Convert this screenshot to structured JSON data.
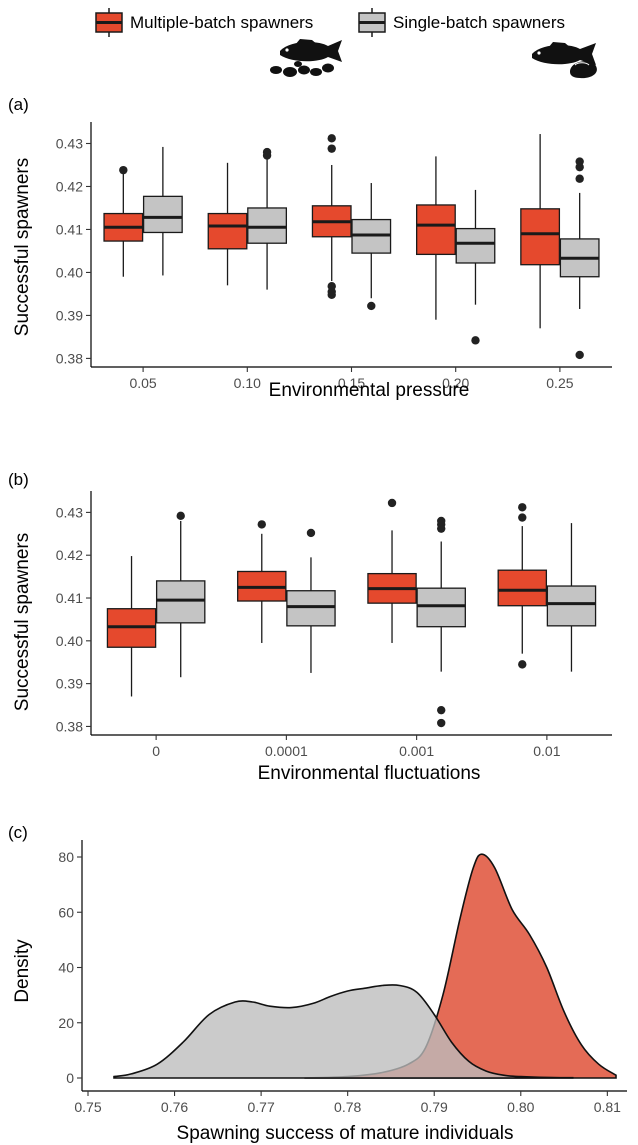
{
  "colors": {
    "multiple": "#e5492d",
    "single": "#c4c4c4",
    "density_multiple": "#e0563f",
    "density_single": "#bdbdbd",
    "stroke": "#1a1a1a"
  },
  "legend": {
    "multiple_label": "Multiple-batch spawners",
    "single_label": "Single-batch spawners"
  },
  "chart_data": [
    {
      "type": "box",
      "panel_label": "(a)",
      "xlabel": "Environmental pressure",
      "ylabel": "Successful spawners",
      "categories": [
        "0.05",
        "0.10",
        "0.15",
        "0.20",
        "0.25"
      ],
      "ylim": [
        0.378,
        0.435
      ],
      "yticks": [
        0.38,
        0.39,
        0.4,
        0.41,
        0.42,
        0.43
      ],
      "ytick_labels": [
        "0.38",
        "0.39",
        "0.40",
        "0.41",
        "0.42",
        "0.43"
      ],
      "grid": false,
      "series": [
        {
          "name": "Multiple-batch spawners",
          "boxes": [
            {
              "min": 0.399,
              "q1": 0.4073,
              "median": 0.4105,
              "q3": 0.4137,
              "max": 0.4235,
              "outliers": [
                0.4238
              ]
            },
            {
              "min": 0.397,
              "q1": 0.4055,
              "median": 0.4108,
              "q3": 0.4137,
              "max": 0.4255,
              "outliers": []
            },
            {
              "min": 0.398,
              "q1": 0.4083,
              "median": 0.4118,
              "q3": 0.4155,
              "max": 0.425,
              "outliers": [
                0.4312,
                0.4288,
                0.3968,
                0.3955,
                0.3948
              ]
            },
            {
              "min": 0.389,
              "q1": 0.4042,
              "median": 0.411,
              "q3": 0.4157,
              "max": 0.427,
              "outliers": []
            },
            {
              "min": 0.387,
              "q1": 0.4018,
              "median": 0.409,
              "q3": 0.4148,
              "max": 0.4322,
              "outliers": []
            }
          ]
        },
        {
          "name": "Single-batch spawners",
          "boxes": [
            {
              "min": 0.3993,
              "q1": 0.4093,
              "median": 0.4128,
              "q3": 0.4177,
              "max": 0.4292,
              "outliers": []
            },
            {
              "min": 0.396,
              "q1": 0.4068,
              "median": 0.4105,
              "q3": 0.415,
              "max": 0.4265,
              "outliers": [
                0.428,
                0.4272
              ]
            },
            {
              "min": 0.394,
              "q1": 0.4045,
              "median": 0.4087,
              "q3": 0.4123,
              "max": 0.4208,
              "outliers": [
                0.3922
              ]
            },
            {
              "min": 0.3925,
              "q1": 0.4022,
              "median": 0.4068,
              "q3": 0.4102,
              "max": 0.4192,
              "outliers": [
                0.3842
              ]
            },
            {
              "min": 0.3915,
              "q1": 0.399,
              "median": 0.4033,
              "q3": 0.4078,
              "max": 0.4185,
              "outliers": [
                0.4258,
                0.4245,
                0.4218,
                0.3808
              ]
            }
          ]
        }
      ]
    },
    {
      "type": "box",
      "panel_label": "(b)",
      "xlabel": "Environmental fluctuations",
      "ylabel": "Successful spawners",
      "categories": [
        "0",
        "0.0001",
        "0.001",
        "0.01"
      ],
      "ylim": [
        0.378,
        0.435
      ],
      "yticks": [
        0.38,
        0.39,
        0.4,
        0.41,
        0.42,
        0.43
      ],
      "ytick_labels": [
        "0.38",
        "0.39",
        "0.40",
        "0.41",
        "0.42",
        "0.43"
      ],
      "grid": false,
      "series": [
        {
          "name": "Multiple-batch spawners",
          "boxes": [
            {
              "min": 0.387,
              "q1": 0.3985,
              "median": 0.4033,
              "q3": 0.4075,
              "max": 0.4198,
              "outliers": []
            },
            {
              "min": 0.3995,
              "q1": 0.4093,
              "median": 0.4125,
              "q3": 0.4162,
              "max": 0.425,
              "outliers": [
                0.4272
              ]
            },
            {
              "min": 0.3995,
              "q1": 0.4088,
              "median": 0.4122,
              "q3": 0.4157,
              "max": 0.4258,
              "outliers": [
                0.4322
              ]
            },
            {
              "min": 0.397,
              "q1": 0.4082,
              "median": 0.4118,
              "q3": 0.4165,
              "max": 0.4268,
              "outliers": [
                0.4312,
                0.4288,
                0.3945
              ]
            }
          ]
        },
        {
          "name": "Single-batch spawners",
          "boxes": [
            {
              "min": 0.3915,
              "q1": 0.4042,
              "median": 0.4095,
              "q3": 0.414,
              "max": 0.428,
              "outliers": [
                0.4292
              ]
            },
            {
              "min": 0.3925,
              "q1": 0.4035,
              "median": 0.408,
              "q3": 0.4117,
              "max": 0.4195,
              "outliers": [
                0.4252
              ]
            },
            {
              "min": 0.3928,
              "q1": 0.4033,
              "median": 0.4082,
              "q3": 0.4123,
              "max": 0.4232,
              "outliers": [
                0.428,
                0.4272,
                0.4262,
                0.3838,
                0.3808
              ]
            },
            {
              "min": 0.3928,
              "q1": 0.4035,
              "median": 0.4087,
              "q3": 0.4128,
              "max": 0.4275,
              "outliers": []
            }
          ]
        }
      ]
    },
    {
      "type": "area",
      "panel_label": "(c)",
      "xlabel": "Spawning success of mature individuals",
      "ylabel": "Density",
      "xlim": [
        0.75,
        0.811
      ],
      "ylim": [
        -2,
        85
      ],
      "xticks": [
        0.75,
        0.76,
        0.77,
        0.78,
        0.79,
        0.8,
        0.81
      ],
      "xtick_labels": [
        "0.75",
        "0.76",
        "0.77",
        "0.78",
        "0.79",
        "0.80",
        "0.81"
      ],
      "yticks": [
        0,
        20,
        40,
        60,
        80
      ],
      "ytick_labels": [
        "0",
        "20",
        "40",
        "60",
        "80"
      ],
      "grid": false,
      "series": [
        {
          "name": "Single-batch spawners",
          "x": [
            0.753,
            0.755,
            0.758,
            0.761,
            0.764,
            0.767,
            0.769,
            0.771,
            0.7735,
            0.776,
            0.778,
            0.78,
            0.782,
            0.784,
            0.786,
            0.788,
            0.79,
            0.792,
            0.794,
            0.796,
            0.798,
            0.8,
            0.803,
            0.806
          ],
          "y": [
            0.5,
            1.5,
            5,
            13,
            23,
            27.5,
            27.5,
            26,
            25.5,
            27,
            29.5,
            31.5,
            32.5,
            33.5,
            33.5,
            31,
            23,
            13,
            6,
            2.5,
            1,
            0.5,
            0.2,
            0.1
          ]
        },
        {
          "name": "Multiple-batch spawners",
          "x": [
            0.775,
            0.78,
            0.784,
            0.787,
            0.789,
            0.791,
            0.793,
            0.7945,
            0.7955,
            0.797,
            0.799,
            0.801,
            0.803,
            0.805,
            0.807,
            0.809,
            0.811
          ],
          "y": [
            0,
            0.5,
            2,
            5,
            11,
            30,
            58,
            76,
            81,
            76,
            61,
            52,
            40,
            24,
            12,
            5,
            1
          ]
        }
      ]
    }
  ]
}
